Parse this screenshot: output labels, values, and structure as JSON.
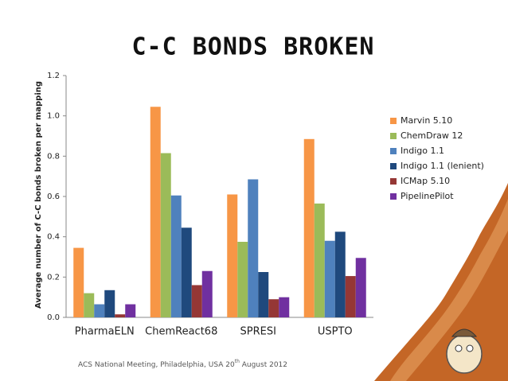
{
  "chart_data": {
    "type": "bar",
    "title": "C-C Bonds Broken",
    "y_label": "Average number of C-C bonds broken per mapping",
    "categories": [
      "PharmaELN",
      "ChemReact68",
      "SPRESI",
      "USPTO"
    ],
    "series": [
      {
        "name": "Marvin 5.10",
        "color": "#f79646",
        "values": [
          0.345,
          1.045,
          0.61,
          0.885
        ]
      },
      {
        "name": "ChemDraw 12",
        "color": "#9bbb59",
        "values": [
          0.12,
          0.815,
          0.375,
          0.565
        ]
      },
      {
        "name": "Indigo 1.1",
        "color": "#4f81bd",
        "values": [
          0.065,
          0.605,
          0.685,
          0.38
        ]
      },
      {
        "name": "Indigo 1.1 (lenient)",
        "color": "#1f497d",
        "values": [
          0.135,
          0.445,
          0.225,
          0.425
        ]
      },
      {
        "name": "ICMap 5.10",
        "color": "#953735",
        "values": [
          0.015,
          0.16,
          0.09,
          0.205
        ]
      },
      {
        "name": "PipelinePilot",
        "color": "#7030a0",
        "values": [
          0.065,
          0.23,
          0.1,
          0.295
        ]
      }
    ],
    "ylim": [
      0,
      1.2
    ],
    "yticks": [
      {
        "value": 0,
        "label": "0.0"
      },
      0.2,
      0.4,
      0.6,
      0.8,
      {
        "value": 1,
        "label": "1.0"
      },
      1.2
    ],
    "legend": "right"
  },
  "footer": {
    "text": "ACS National Meeting, Philadelphia, USA  20",
    "superscript": "th",
    "text_after": " August 2012"
  }
}
